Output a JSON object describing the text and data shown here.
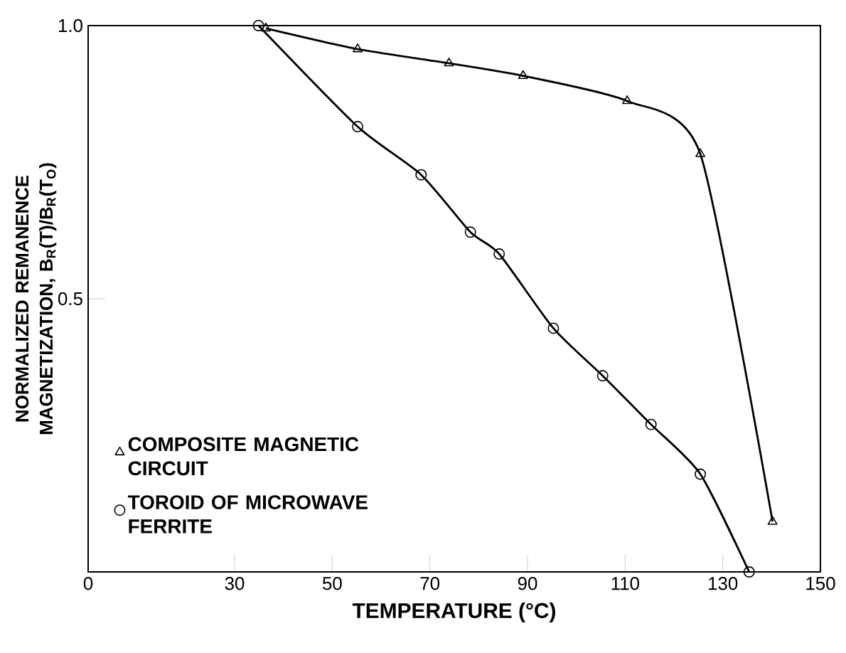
{
  "chart_data": {
    "type": "line",
    "xlabel": "TEMPERATURE (°C)",
    "ylabel": "NORMALIZED REMANENCE MAGNETIZATION, B$_{R}$(T)/B$_{R}$(T$_{O}$)",
    "xlim": [
      0,
      150
    ],
    "ylim": [
      0,
      1
    ],
    "xticks": [
      0,
      30,
      50,
      70,
      90,
      110,
      130,
      150
    ],
    "yticks": [
      {
        "value": 0,
        "label": null
      },
      0.5,
      {
        "value": 1,
        "label": "1.0"
      }
    ],
    "legend": "bottom left",
    "grid": false,
    "series": [
      {
        "name": "COMPOSITE MAGNETIC CIRCUIT",
        "color": "#000000",
        "marker": "triangle",
        "x": [
          36.4,
          55.2,
          73.9,
          89.1,
          110.4,
          125.4,
          140.2
        ],
        "values": [
          0.995,
          0.957,
          0.931,
          0.908,
          0.862,
          0.765,
          0.092
        ]
      },
      {
        "name": "TOROID OF MICROWAVE FERRITE",
        "color": "#000000",
        "marker": "circle",
        "x": [
          34.9,
          55.2,
          68.2,
          78.3,
          84.2,
          95.3,
          105.4,
          115.3,
          125.4,
          135.4
        ],
        "values": [
          1.0,
          0.815,
          0.727,
          0.622,
          0.582,
          0.446,
          0.359,
          0.27,
          0.179,
          0.0
        ]
      }
    ]
  }
}
